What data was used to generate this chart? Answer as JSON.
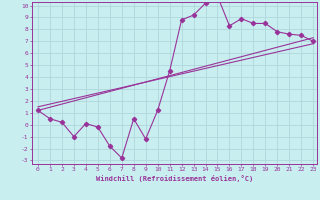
{
  "xlabel": "Windchill (Refroidissement éolien,°C)",
  "background_color": "#c8eef0",
  "grid_color": "#b0d8dc",
  "line_color": "#993399",
  "spine_color": "#993399",
  "xlim": [
    0,
    23
  ],
  "ylim": [
    -3,
    10
  ],
  "xticks": [
    0,
    1,
    2,
    3,
    4,
    5,
    6,
    7,
    8,
    9,
    10,
    11,
    12,
    13,
    14,
    15,
    16,
    17,
    18,
    19,
    20,
    21,
    22,
    23
  ],
  "yticks": [
    -3,
    -2,
    -1,
    0,
    1,
    2,
    3,
    4,
    5,
    6,
    7,
    8,
    9,
    10
  ],
  "line1_x": [
    0,
    1,
    2,
    3,
    4,
    5,
    6,
    7,
    8,
    9,
    10,
    11,
    12,
    13,
    14,
    15,
    16,
    17,
    18,
    19,
    20,
    21,
    22,
    23
  ],
  "line1_y": [
    1.2,
    0.5,
    0.2,
    -1.0,
    0.1,
    -0.2,
    -1.8,
    -2.8,
    0.5,
    -1.2,
    1.2,
    4.5,
    8.8,
    9.2,
    10.2,
    10.8,
    8.3,
    8.9,
    8.5,
    8.5,
    7.8,
    7.6,
    7.5,
    7.0
  ],
  "line2_x": [
    0,
    23
  ],
  "line2_y": [
    1.2,
    7.3
  ],
  "line3_x": [
    0,
    23
  ],
  "line3_y": [
    1.5,
    6.8
  ]
}
